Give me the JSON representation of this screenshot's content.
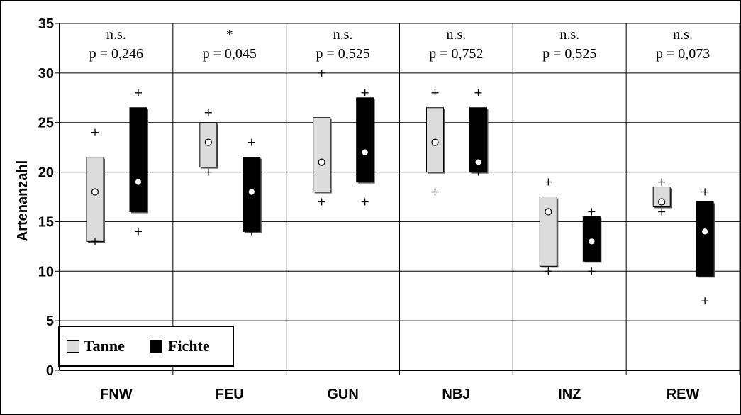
{
  "chart_data": {
    "type": "boxplot",
    "ylabel": "Artenanzahl",
    "ylim": [
      0,
      35
    ],
    "yticks": [
      0,
      5,
      10,
      15,
      20,
      25,
      30,
      35
    ],
    "grid": true,
    "legend_position": "bottom-left",
    "categories": [
      "FNW",
      "FEU",
      "GUN",
      "NBJ",
      "INZ",
      "REW"
    ],
    "significance": [
      "n.s.",
      "*",
      "n.s.",
      "n.s.",
      "n.s.",
      "n.s."
    ],
    "p_values": [
      "p = 0,246",
      "p = 0,045",
      "p = 0,525",
      "p = 0,752",
      "p = 0,525",
      "p = 0,073"
    ],
    "series": [
      {
        "name": "Tanne",
        "color": "#dcdcdc",
        "box_low": [
          13,
          20.5,
          18,
          20,
          10.5,
          16.5
        ],
        "box_high": [
          21.5,
          25,
          25.5,
          26.5,
          17.5,
          18.5
        ],
        "mean": [
          18,
          23,
          21,
          23,
          16,
          17
        ],
        "min": [
          13,
          20,
          17,
          18,
          10,
          16
        ],
        "max": [
          24,
          26,
          30,
          28,
          19,
          19
        ]
      },
      {
        "name": "Fichte",
        "color": "#000000",
        "box_low": [
          16,
          14,
          19,
          20,
          11,
          9.5
        ],
        "box_high": [
          26.5,
          21.5,
          27.5,
          26.5,
          15.5,
          17
        ],
        "mean": [
          19,
          18,
          22,
          21,
          13,
          14
        ],
        "min": [
          14,
          14,
          17,
          20,
          10,
          7
        ],
        "max": [
          28,
          23,
          28,
          28,
          16,
          18
        ]
      }
    ]
  }
}
